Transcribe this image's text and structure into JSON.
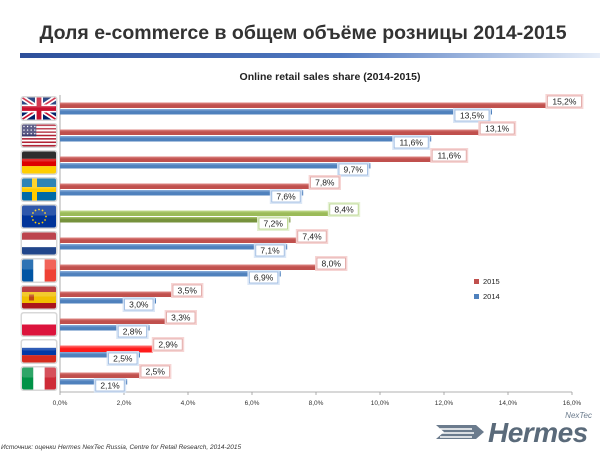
{
  "slide": {
    "title": "Доля e-commerce в общем объёме розницы 2014-2015",
    "source": "Источник: оценки Hermes NexTec Russia, Centre for Retail Research, 2014-2015"
  },
  "logo": {
    "brand": "Hermes",
    "sub": "NexTec"
  },
  "colors": {
    "bar_2015": "#c0504d",
    "bar_2014": "#4f81bd",
    "eu_2015": "#9bbb59",
    "eu_2014": "#76923c",
    "russia_2015": "#ff1a1a",
    "title_rule": "#2d4f9a"
  },
  "chart_data": {
    "type": "bar",
    "orientation": "horizontal",
    "title": "Online retail sales share (2014-2015)",
    "xlabel": "",
    "ylabel": "",
    "xlim": [
      0,
      16
    ],
    "x_ticks": [
      "0,0%",
      "2,0%",
      "4,0%",
      "6,0%",
      "8,0%",
      "10,0%",
      "12,0%",
      "14,0%",
      "16,0%"
    ],
    "legend_position": "right",
    "categories": [
      "UK",
      "USA",
      "Germany",
      "Sweden",
      "EU",
      "Netherlands",
      "France",
      "Spain",
      "Poland",
      "Russia",
      "Italy"
    ],
    "category_icons": [
      "uk-flag-icon",
      "usa-flag-icon",
      "germany-flag-icon",
      "sweden-flag-icon",
      "eu-flag-icon",
      "netherlands-flag-icon",
      "france-flag-icon",
      "spain-flag-icon",
      "poland-flag-icon",
      "russia-flag-icon",
      "italy-flag-icon"
    ],
    "series": [
      {
        "name": "2015",
        "values": [
          15.2,
          13.1,
          11.6,
          7.8,
          8.4,
          7.4,
          8.0,
          3.5,
          3.3,
          2.9,
          2.5
        ],
        "labels": [
          "15,2%",
          "13,1%",
          "11,6%",
          "7,8%",
          "8,4%",
          "7,4%",
          "8,0%",
          "3,5%",
          "3,3%",
          "2,9%",
          "2,5%"
        ]
      },
      {
        "name": "2014",
        "values": [
          13.5,
          11.6,
          9.7,
          7.6,
          7.2,
          7.1,
          6.9,
          3.0,
          2.8,
          2.5,
          2.1
        ],
        "labels": [
          "13,5%",
          "11,6%",
          "9,7%",
          "7,6%",
          "7,2%",
          "7,1%",
          "6,9%",
          "3,0%",
          "2,8%",
          "2,5%",
          "2,1%"
        ]
      }
    ]
  }
}
